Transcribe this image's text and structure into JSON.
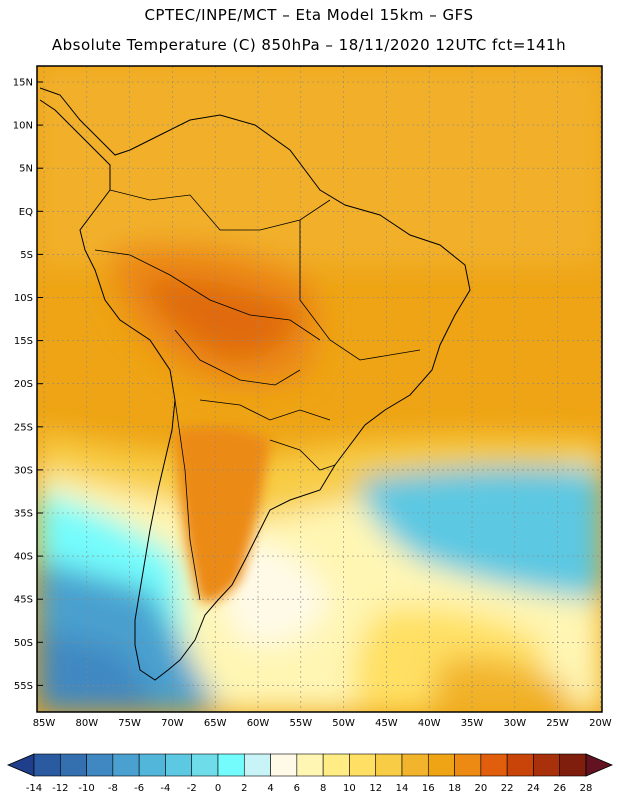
{
  "header": {
    "line1": "CPTEC/INPE/MCT –  Eta Model 15km – GFS",
    "line2": "Absolute Temperature (C) 850hPa – 18/11/2020 12UTC fct=141h"
  },
  "map": {
    "lat_labels": [
      "15N",
      "10N",
      "5N",
      "EQ",
      "5S",
      "10S",
      "15S",
      "20S",
      "25S",
      "30S",
      "35S",
      "40S",
      "45S",
      "50S",
      "55S"
    ],
    "lon_labels": [
      "85W",
      "80W",
      "75W",
      "70W",
      "65W",
      "60W",
      "55W",
      "50W",
      "45W",
      "40W",
      "35W",
      "30W",
      "25W",
      "20W"
    ]
  },
  "colorbar": {
    "ticks": [
      "-14",
      "-12",
      "-10",
      "-8",
      "-6",
      "-4",
      "-2",
      "0",
      "2",
      "4",
      "6",
      "8",
      "10",
      "12",
      "14",
      "16",
      "18",
      "20",
      "22",
      "24",
      "26",
      "28"
    ],
    "colors": [
      "#1f3f8c",
      "#2a5aa0",
      "#3470b0",
      "#3f88c2",
      "#4aa0cf",
      "#52b6da",
      "#5cc8e2",
      "#6fdcea",
      "#74fcfc",
      "#c8f4f8",
      "#fffae8",
      "#fff6b4",
      "#ffec84",
      "#ffe064",
      "#f8cc44",
      "#f2b42c",
      "#eea414",
      "#ec8a14",
      "#e05e0c",
      "#c84408",
      "#a8300a",
      "#801e0e",
      "#621220"
    ]
  }
}
